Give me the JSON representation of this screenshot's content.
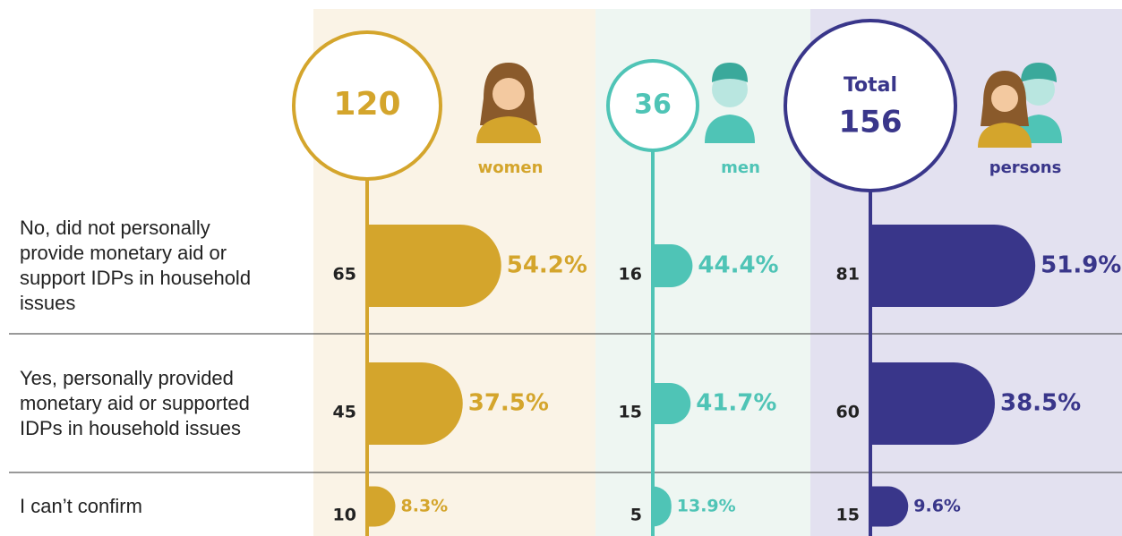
{
  "chart_data": {
    "type": "bar",
    "categories": [
      "No, did not personally provide monetary aid or support IDPs in household issues",
      "Yes, personally provided monetary aid or supported IDPs in household issues",
      "I can’t confirm"
    ],
    "series": [
      {
        "name": "women",
        "total": 120,
        "color": "#d4a52c",
        "values": [
          65,
          45,
          10
        ],
        "shares": [
          54.2,
          37.5,
          8.3
        ],
        "share_labels": [
          "54.2%",
          "37.5%",
          "8.3%"
        ]
      },
      {
        "name": "men",
        "total": 36,
        "color": "#4fc4b6",
        "values": [
          16,
          15,
          5
        ],
        "shares": [
          44.4,
          41.7,
          13.9
        ],
        "share_labels": [
          "44.4%",
          "41.7%",
          "13.9%"
        ]
      },
      {
        "name": "persons",
        "total_label": "Total",
        "total": 156,
        "color": "#39368a",
        "values": [
          81,
          60,
          15
        ],
        "shares": [
          51.9,
          38.5,
          9.6
        ],
        "share_labels": [
          "51.9%",
          "38.5%",
          "9.6%"
        ]
      }
    ]
  }
}
